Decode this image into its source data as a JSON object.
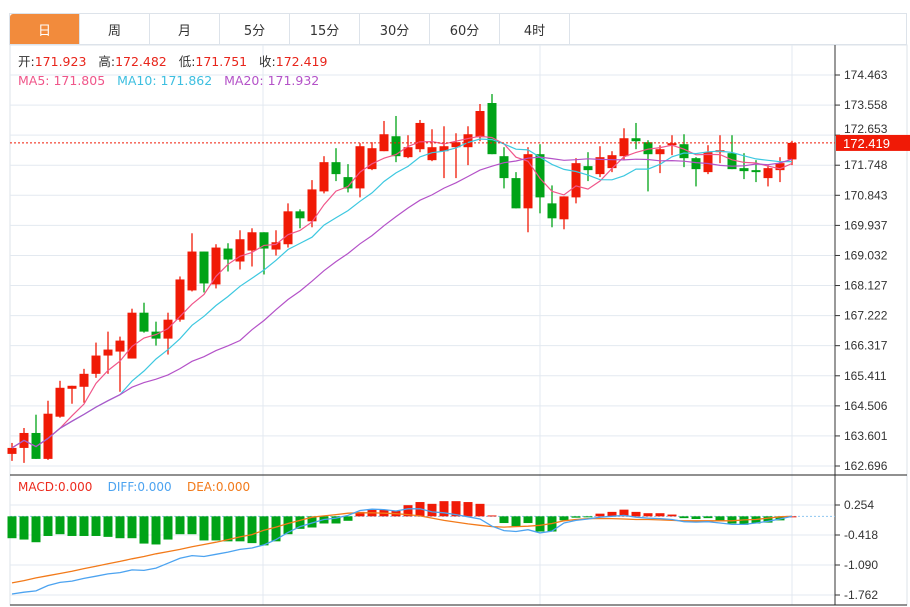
{
  "tabs": [
    "日",
    "周",
    "月",
    "5分",
    "15分",
    "30分",
    "60分",
    "4时"
  ],
  "active_tab": 0,
  "ohlc_header": {
    "open_label": "开:",
    "open": "171.923",
    "high_label": "高:",
    "high": "172.482",
    "low_label": "低:",
    "low": "171.751",
    "close_label": "收:",
    "close": "172.419"
  },
  "ma_header": {
    "ma5": "MA5: 171.805",
    "ma10": "MA10: 171.862",
    "ma20": "MA20: 171.932"
  },
  "macd_header": {
    "macd": "MACD:0.000",
    "diff": "DIFF:0.000",
    "dea": "DEA:0.000"
  },
  "colors": {
    "up": "#f01a06",
    "down": "#00a317",
    "ma5": "#f0568a",
    "ma10": "#3dc8e0",
    "ma20": "#b452c8",
    "diff": "#4ca3f0",
    "dea": "#f27a1a",
    "accent": "#f28b3c"
  },
  "chart_data": [
    {
      "type": "candlestick",
      "title": "",
      "y_ticks": [
        "174.463",
        "173.558",
        "172.653",
        "171.748",
        "170.843",
        "169.937",
        "169.032",
        "168.127",
        "167.222",
        "166.317",
        "165.411",
        "164.506",
        "163.601",
        "162.696"
      ],
      "ylim": [
        162.696,
        174.463
      ],
      "last_price": "172.419",
      "ohlc": [
        [
          163.06,
          163.39,
          162.85,
          163.24
        ],
        [
          163.24,
          163.84,
          162.79,
          163.69
        ],
        [
          163.69,
          164.24,
          162.91,
          162.91
        ],
        [
          162.91,
          164.66,
          162.88,
          164.27
        ],
        [
          164.18,
          165.26,
          164.15,
          165.05
        ],
        [
          165.02,
          165.11,
          164.57,
          165.11
        ],
        [
          165.08,
          165.62,
          164.6,
          165.47
        ],
        [
          165.47,
          166.41,
          165.35,
          166.02
        ],
        [
          166.02,
          166.74,
          165.47,
          166.2
        ],
        [
          166.14,
          166.59,
          164.93,
          166.47
        ],
        [
          165.93,
          167.43,
          165.93,
          167.31
        ],
        [
          167.31,
          167.61,
          166.71,
          166.74
        ],
        [
          166.74,
          167.04,
          166.32,
          166.53
        ],
        [
          166.53,
          167.31,
          166.05,
          167.1
        ],
        [
          167.1,
          168.4,
          167.04,
          168.31
        ],
        [
          167.98,
          169.7,
          167.95,
          169.15
        ],
        [
          169.15,
          169.15,
          167.92,
          168.19
        ],
        [
          168.16,
          169.37,
          168.04,
          169.27
        ],
        [
          169.24,
          169.4,
          168.55,
          168.91
        ],
        [
          168.85,
          169.79,
          168.61,
          169.52
        ],
        [
          169.18,
          169.85,
          168.7,
          169.73
        ],
        [
          169.73,
          169.73,
          168.46,
          169.24
        ],
        [
          169.21,
          169.79,
          169.03,
          169.43
        ],
        [
          169.37,
          170.6,
          169.27,
          170.36
        ],
        [
          170.36,
          170.42,
          169.85,
          170.15
        ],
        [
          170.06,
          171.3,
          169.88,
          171.02
        ],
        [
          170.96,
          172.02,
          170.9,
          171.84
        ],
        [
          171.84,
          172.26,
          171.27,
          171.48
        ],
        [
          171.39,
          171.78,
          170.93,
          171.05
        ],
        [
          171.05,
          172.41,
          170.78,
          172.32
        ],
        [
          171.63,
          172.44,
          171.6,
          172.26
        ],
        [
          172.17,
          173.08,
          172.17,
          172.68
        ],
        [
          172.62,
          173.23,
          171.84,
          172.02
        ],
        [
          171.99,
          172.65,
          171.96,
          172.29
        ],
        [
          172.23,
          173.11,
          172.14,
          173.02
        ],
        [
          171.9,
          172.83,
          171.87,
          172.29
        ],
        [
          172.17,
          172.92,
          171.36,
          172.32
        ],
        [
          172.29,
          172.71,
          171.36,
          172.44
        ],
        [
          172.29,
          172.92,
          171.75,
          172.68
        ],
        [
          172.59,
          173.59,
          172.47,
          173.38
        ],
        [
          173.62,
          173.89,
          172.08,
          172.08
        ],
        [
          172.02,
          172.29,
          171.05,
          171.36
        ],
        [
          171.36,
          171.54,
          170.45,
          170.45
        ],
        [
          170.45,
          172.29,
          169.73,
          172.08
        ],
        [
          172.08,
          172.38,
          170.3,
          170.78
        ],
        [
          170.6,
          171.14,
          169.88,
          170.15
        ],
        [
          170.12,
          170.81,
          169.82,
          170.81
        ],
        [
          170.78,
          171.96,
          170.6,
          171.81
        ],
        [
          171.72,
          172.14,
          171.27,
          171.6
        ],
        [
          171.48,
          172.32,
          171.39,
          171.99
        ],
        [
          171.66,
          172.17,
          171.54,
          172.05
        ],
        [
          172.02,
          172.86,
          171.9,
          172.56
        ],
        [
          172.56,
          173.02,
          172.23,
          172.47
        ],
        [
          172.44,
          172.5,
          170.96,
          172.08
        ],
        [
          172.08,
          172.35,
          171.51,
          172.23
        ],
        [
          172.35,
          172.65,
          172.05,
          172.41
        ],
        [
          172.38,
          172.68,
          171.69,
          171.96
        ],
        [
          171.96,
          171.99,
          171.11,
          171.63
        ],
        [
          171.54,
          172.35,
          171.48,
          172.14
        ],
        [
          172.14,
          172.65,
          171.81,
          172.2
        ],
        [
          172.11,
          172.65,
          171.63,
          171.63
        ],
        [
          171.66,
          172.11,
          171.33,
          171.57
        ],
        [
          171.6,
          171.9,
          171.24,
          171.54
        ],
        [
          171.36,
          171.75,
          171.11,
          171.66
        ],
        [
          171.6,
          171.99,
          171.24,
          171.81
        ],
        [
          171.923,
          172.482,
          171.751,
          172.419
        ]
      ],
      "ma_periods": [
        5,
        10,
        20
      ]
    },
    {
      "type": "macd",
      "y_ticks": [
        "0.254",
        "-0.418",
        "-1.090",
        "-1.762"
      ],
      "ylim": [
        -1.762,
        0.254
      ],
      "hist": [
        -0.49,
        -0.52,
        -0.58,
        -0.44,
        -0.4,
        -0.44,
        -0.44,
        -0.44,
        -0.46,
        -0.49,
        -0.49,
        -0.61,
        -0.63,
        -0.52,
        -0.4,
        -0.4,
        -0.54,
        -0.54,
        -0.56,
        -0.56,
        -0.6,
        -0.65,
        -0.56,
        -0.4,
        -0.28,
        -0.25,
        -0.16,
        -0.16,
        -0.1,
        0.1,
        0.15,
        0.15,
        0.12,
        0.25,
        0.32,
        0.28,
        0.34,
        0.34,
        0.32,
        0.28,
        0.02,
        -0.15,
        -0.22,
        -0.15,
        -0.34,
        -0.34,
        -0.09,
        -0.03,
        -0.01,
        0.06,
        0.1,
        0.15,
        0.1,
        0.07,
        0.07,
        0.04,
        -0.04,
        -0.06,
        -0.04,
        -0.1,
        -0.16,
        -0.19,
        -0.16,
        -0.14,
        -0.09,
        0.0
      ],
      "dea": [
        -1.49,
        -1.44,
        -1.38,
        -1.33,
        -1.28,
        -1.23,
        -1.17,
        -1.12,
        -1.06,
        -1.01,
        -0.95,
        -0.9,
        -0.84,
        -0.79,
        -0.74,
        -0.68,
        -0.63,
        -0.58,
        -0.52,
        -0.46,
        -0.41,
        -0.31,
        -0.24,
        -0.16,
        -0.09,
        -0.02,
        0.01,
        0.04,
        0.07,
        0.08,
        0.08,
        0.07,
        0.06,
        0.04,
        0.01,
        -0.04,
        -0.09,
        -0.13,
        -0.17,
        -0.2,
        -0.23,
        -0.24,
        -0.23,
        -0.22,
        -0.2,
        -0.16,
        -0.1,
        -0.07,
        -0.05,
        -0.05,
        -0.05,
        -0.06,
        -0.07,
        -0.07,
        -0.08,
        -0.09,
        -0.1,
        -0.1,
        -0.1,
        -0.1,
        -0.1,
        -0.08,
        -0.07,
        -0.04,
        -0.01,
        0.0
      ],
      "diff": [
        -1.74,
        -1.7,
        -1.67,
        -1.55,
        -1.48,
        -1.45,
        -1.39,
        -1.34,
        -1.29,
        -1.26,
        -1.2,
        -1.21,
        -1.16,
        -1.05,
        -0.94,
        -0.88,
        -0.9,
        -0.85,
        -0.8,
        -0.74,
        -0.71,
        -0.64,
        -0.52,
        -0.36,
        -0.23,
        -0.15,
        -0.07,
        -0.04,
        0.02,
        0.13,
        0.16,
        0.15,
        0.12,
        0.17,
        0.17,
        0.1,
        0.08,
        0.04,
        -0.01,
        -0.06,
        -0.22,
        -0.32,
        -0.34,
        -0.3,
        -0.37,
        -0.33,
        -0.15,
        -0.09,
        -0.06,
        -0.02,
        0.0,
        0.02,
        -0.02,
        -0.04,
        -0.05,
        -0.07,
        -0.12,
        -0.13,
        -0.12,
        -0.15,
        -0.18,
        -0.18,
        -0.15,
        -0.11,
        -0.06,
        0.0
      ]
    }
  ]
}
